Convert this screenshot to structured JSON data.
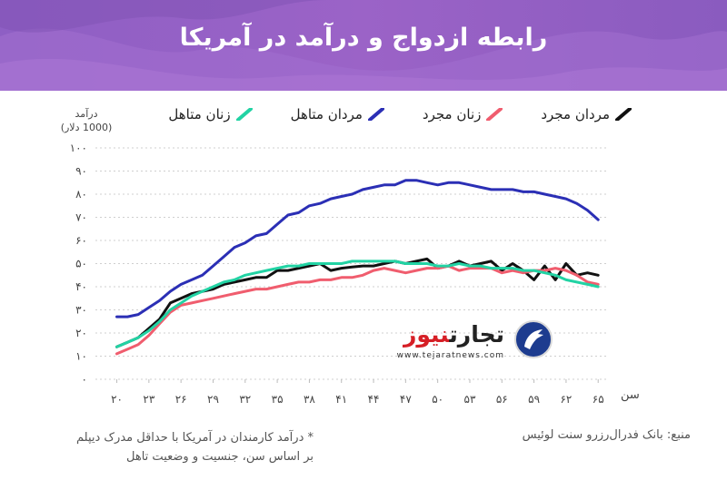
{
  "header": {
    "title": "رابطه ازدواج و درآمد در آمریکا"
  },
  "legend": {
    "items": [
      {
        "label": "مردان مجرد",
        "color": "#111111"
      },
      {
        "label": "زنان مجرد",
        "color": "#f05d6e"
      },
      {
        "label": "مردان متاهل",
        "color": "#2b2fb5"
      },
      {
        "label": "زنان متاهل",
        "color": "#22d3a4"
      }
    ]
  },
  "axis": {
    "ylabel_line1": "درآمد",
    "ylabel_line2": "(1000 دلار)",
    "xunit": "سن"
  },
  "footer": {
    "source": "منبع: بانک فدرال‌رزرو سنت لوئیس",
    "note_line1": "* درآمد کارمندان در آمریکا با حداقل مدرک دیپلم",
    "note_line2": "بر اساس سن، جنسیت و وضعیت تاهل"
  },
  "logo": {
    "name_part1": "تجارت",
    "name_part2": "نیوز",
    "url": "www.tejaratnews.com"
  },
  "chart_data": {
    "type": "line",
    "title": "رابطه ازدواج و درآمد در آمریکا",
    "xlabel": "سن",
    "ylabel": "درآمد (1000 دلار)",
    "ylim": [
      0,
      100
    ],
    "xlim": [
      18,
      66
    ],
    "y_ticks": [
      "۰",
      "۱۰",
      "۲۰",
      "۳۰",
      "۴۰",
      "۵۰",
      "۶۰",
      "۷۰",
      "۸۰",
      "۹۰",
      "۱۰۰"
    ],
    "x_ticks": [
      {
        "value": 20,
        "label": "۲۰"
      },
      {
        "value": 23,
        "label": "۲۳"
      },
      {
        "value": 26,
        "label": "۲۶"
      },
      {
        "value": 29,
        "label": "۲۹"
      },
      {
        "value": 32,
        "label": "۳۲"
      },
      {
        "value": 35,
        "label": "۳۵"
      },
      {
        "value": 38,
        "label": "۳۸"
      },
      {
        "value": 41,
        "label": "۴۱"
      },
      {
        "value": 44,
        "label": "۴۴"
      },
      {
        "value": 47,
        "label": "۴۷"
      },
      {
        "value": 50,
        "label": "۵۰"
      },
      {
        "value": 53,
        "label": "۵۳"
      },
      {
        "value": 56,
        "label": "۵۶"
      },
      {
        "value": 59,
        "label": "۵۹"
      },
      {
        "value": 62,
        "label": "۶۲"
      },
      {
        "value": 65,
        "label": "۶۵"
      }
    ],
    "x": [
      20,
      21,
      22,
      23,
      24,
      25,
      26,
      27,
      28,
      29,
      30,
      31,
      32,
      33,
      34,
      35,
      36,
      37,
      38,
      39,
      40,
      41,
      42,
      43,
      44,
      45,
      46,
      47,
      48,
      49,
      50,
      51,
      52,
      53,
      54,
      55,
      56,
      57,
      58,
      59,
      60,
      61,
      62,
      63,
      64,
      65
    ],
    "series": [
      {
        "name": "مردان مجرد",
        "color": "#111111",
        "values": [
          14,
          16,
          18,
          22,
          26,
          33,
          35,
          37,
          38,
          39,
          41,
          42,
          43,
          44,
          44,
          47,
          47,
          48,
          49,
          50,
          47,
          48,
          48.5,
          49,
          49,
          50,
          51,
          50,
          51,
          52,
          48,
          49,
          51,
          49,
          50,
          51,
          47,
          50,
          47,
          43,
          49,
          43,
          50,
          45,
          46,
          45
        ]
      },
      {
        "name": "زنان مجرد",
        "color": "#f05d6e",
        "values": [
          11,
          13,
          15,
          19,
          24,
          29,
          32,
          33,
          34,
          35,
          36,
          37,
          38,
          39,
          39,
          40,
          41,
          42,
          42,
          43,
          43,
          44,
          44,
          45,
          47,
          48,
          47,
          46,
          47,
          48,
          48,
          49,
          47,
          48,
          48,
          48,
          46,
          47,
          46,
          47,
          47,
          48,
          47,
          45,
          42,
          41
        ]
      },
      {
        "name": "مردان متاهل",
        "color": "#2b2fb5",
        "values": [
          27,
          27,
          28,
          31,
          34,
          38,
          41,
          43,
          45,
          49,
          53,
          57,
          59,
          62,
          63,
          67,
          71,
          72,
          75,
          76,
          78,
          79,
          80,
          82,
          83,
          84,
          84,
          86,
          86,
          85,
          84,
          85,
          85,
          84,
          83,
          82,
          82,
          82,
          81,
          81,
          80,
          79,
          78,
          76,
          73,
          69
        ]
      },
      {
        "name": "زنان متاهل",
        "color": "#22d3a4",
        "values": [
          14,
          16,
          18,
          21,
          25,
          30,
          33,
          36,
          38,
          40,
          42,
          43,
          45,
          46,
          47,
          48,
          49,
          49,
          50,
          50,
          50,
          50,
          51,
          51,
          51,
          51,
          51,
          50,
          50,
          50,
          49,
          49,
          50,
          49,
          49,
          48,
          48,
          48,
          47,
          47,
          46,
          45,
          43,
          42,
          41,
          40
        ]
      }
    ]
  }
}
